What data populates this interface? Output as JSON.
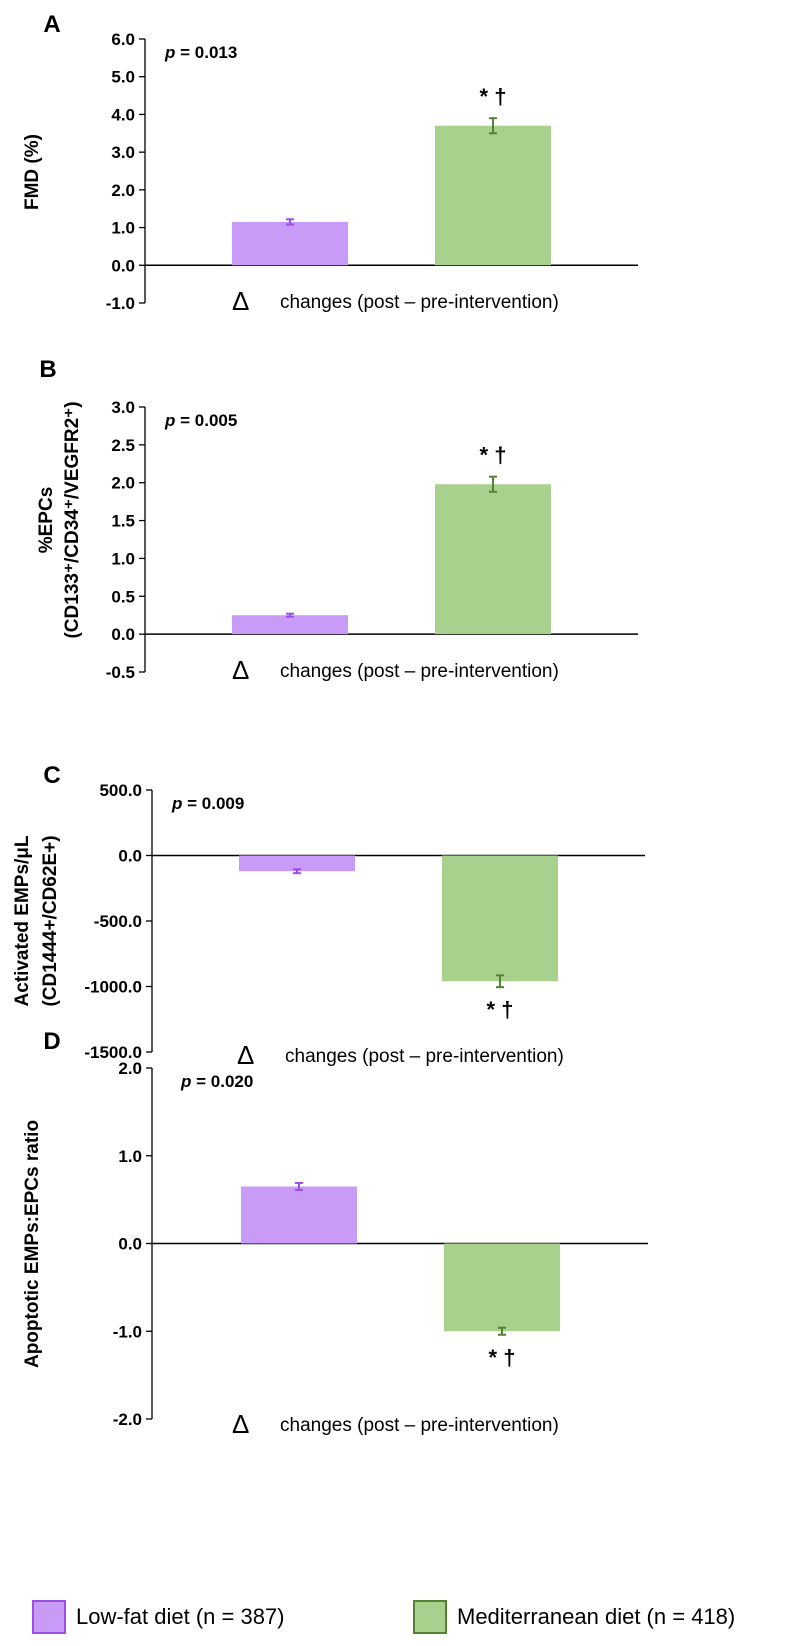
{
  "colors": {
    "low_fat": "#c89bf6",
    "low_fat_edge": "#9b4fe6",
    "mediterranean": "#a9d18e",
    "mediterranean_edge": "#548235"
  },
  "legend": {
    "low_fat": "Low-fat diet (n = 387)",
    "mediterranean": "Mediterranean diet (n = 418)"
  },
  "chart_data": [
    {
      "type": "bar",
      "panel": "A",
      "ylabel": "FMD (%)",
      "xlabel": "changes (post – pre-intervention)",
      "ylim": [
        -1.0,
        6.0
      ],
      "ticks": [
        6.0,
        5.0,
        4.0,
        3.0,
        2.0,
        1.0,
        0.0,
        -1.0
      ],
      "tick_labels": [
        "6.0",
        "5.0",
        "4.0",
        "3.0",
        "2.0",
        "1.0",
        "0.0",
        "-1.0"
      ],
      "p_label": "p",
      "p_value": "= 0.013",
      "annotation": "* †",
      "series": [
        {
          "name": "Low-fat diet (n = 387)",
          "value": 1.15,
          "error": 0.07
        },
        {
          "name": "Mediterranean diet (n = 418)",
          "value": 3.7,
          "error": 0.2
        }
      ]
    },
    {
      "type": "bar",
      "panel": "B",
      "ylabel": "%EPCs",
      "ylabel2": "(CD133⁺/CD34⁺/VEGFR2⁺)",
      "xlabel": "changes (post – pre-intervention)",
      "ylim": [
        -0.5,
        3.0
      ],
      "ticks": [
        3.0,
        2.5,
        2.0,
        1.5,
        1.0,
        0.5,
        0.0,
        -0.5
      ],
      "tick_labels": [
        "3.0",
        "2.5",
        "2.0",
        "1.5",
        "1.0",
        "0.5",
        "0.0",
        "-0.5"
      ],
      "p_label": "p",
      "p_value": "= 0.005",
      "annotation": "* †",
      "series": [
        {
          "name": "Low-fat diet (n = 387)",
          "value": 0.25,
          "error": 0.02
        },
        {
          "name": "Mediterranean diet (n = 418)",
          "value": 1.98,
          "error": 0.1
        }
      ]
    },
    {
      "type": "bar",
      "panel": "C",
      "ylabel": "Activated EMPs/μL",
      "ylabel2": "(CD1444+/CD62E+)",
      "xlabel": "changes (post – pre-intervention)",
      "ylim": [
        -1500,
        500
      ],
      "ticks": [
        500,
        0,
        -500,
        -1000,
        -1500
      ],
      "tick_labels": [
        "500.0",
        "0.0",
        "-500.0",
        "-1000.0",
        "-1500.0"
      ],
      "p_label": "p",
      "p_value": "= 0.009",
      "annotation": "* †",
      "series": [
        {
          "name": "Low-fat diet (n = 387)",
          "value": -120,
          "error": 15
        },
        {
          "name": "Mediterranean diet (n = 418)",
          "value": -960,
          "error": 45
        }
      ]
    },
    {
      "type": "bar",
      "panel": "D",
      "ylabel": "Apoptotic EMPs:EPCs ratio",
      "xlabel": "changes (post – pre-intervention)",
      "ylim": [
        -2.0,
        2.0
      ],
      "ticks": [
        2.0,
        1.0,
        0.0,
        -1.0,
        -2.0
      ],
      "tick_labels": [
        "2.0",
        "1.0",
        "0.0",
        "-1.0",
        "-2.0"
      ],
      "p_label": "p",
      "p_value": "= 0.020",
      "annotation": "* †",
      "series": [
        {
          "name": "Low-fat diet (n = 387)",
          "value": 0.65,
          "error": 0.04
        },
        {
          "name": "Mediterranean diet (n = 418)",
          "value": -1.0,
          "error": 0.04
        }
      ]
    }
  ]
}
